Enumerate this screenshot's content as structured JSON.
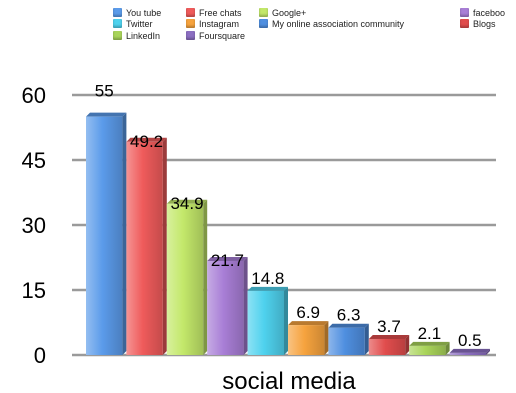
{
  "chart_data": {
    "type": "bar",
    "title": "",
    "xlabel": "social media",
    "ylabel": "",
    "ylim": [
      0,
      60
    ],
    "yticks": [
      "0",
      "15",
      "30",
      "45",
      "60"
    ],
    "grid": true,
    "legend_position": "top",
    "series": [
      {
        "name": "You tube",
        "value": 55,
        "label": "55",
        "color": "#5b9bea"
      },
      {
        "name": "Free chats",
        "value": 49.2,
        "label": "49.2",
        "color": "#ef5b5b"
      },
      {
        "name": "Google+",
        "value": 34.9,
        "label": "34.9",
        "color": "#c3e86a"
      },
      {
        "name": "faceboo",
        "value": 21.7,
        "label": "21.7",
        "color": "#a87ed6"
      },
      {
        "name": "Twitter",
        "value": 14.8,
        "label": "14.8",
        "color": "#4fd2ee"
      },
      {
        "name": "Instagram",
        "value": 6.9,
        "label": "6.9",
        "color": "#f6a33e"
      },
      {
        "name": "My online association community",
        "value": 6.3,
        "label": "6.3",
        "color": "#4f8fe0"
      },
      {
        "name": "Blogs",
        "value": 3.7,
        "label": "3.7",
        "color": "#e14d4d"
      },
      {
        "name": "LinkedIn",
        "value": 2.1,
        "label": "2.1",
        "color": "#a9d45a"
      },
      {
        "name": "Foursquare",
        "value": 0.5,
        "label": "0.5",
        "color": "#8c6fc2"
      }
    ]
  }
}
